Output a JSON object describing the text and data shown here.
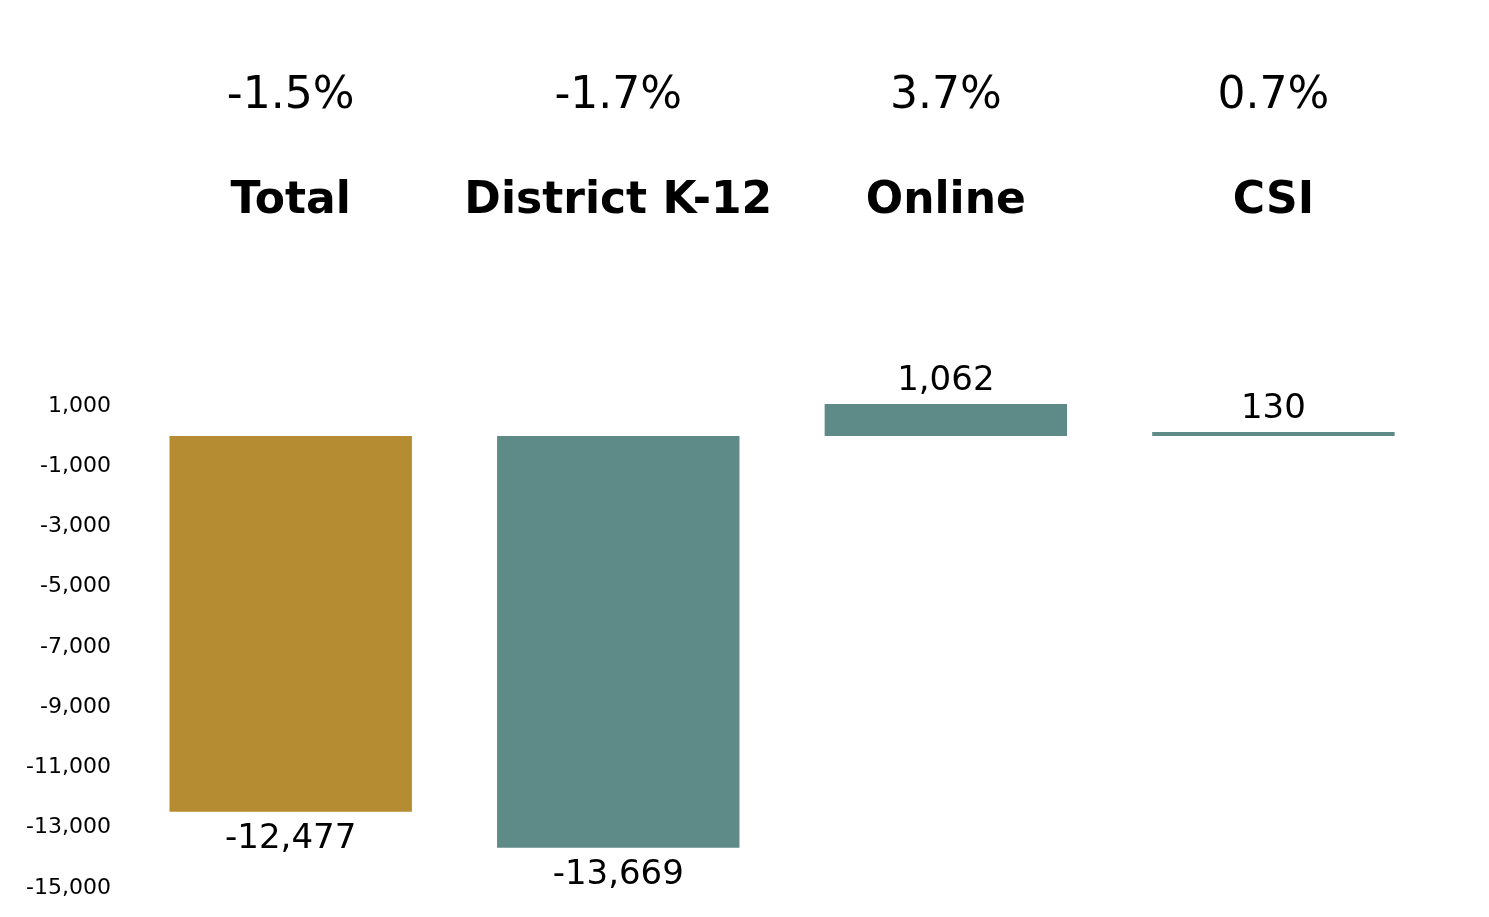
{
  "chart_data": {
    "type": "bar",
    "categories": [
      "Total",
      "District K-12",
      "Online",
      "CSI"
    ],
    "values": [
      -12477,
      -13669,
      1062,
      130
    ],
    "colors": [
      "#b58c32",
      "#5e8a87",
      "#5e8a87",
      "#5e8a87"
    ],
    "value_labels": [
      "-12,477",
      "-13,669",
      "1,062",
      "130"
    ],
    "annotations": [
      "-1.5%",
      "-1.7%",
      "3.7%",
      "0.7%"
    ],
    "ylim": [
      -15000,
      1100
    ],
    "yticks": [
      {
        "value": 1000,
        "label": "1,000"
      },
      {
        "value": -1000,
        "label": "-1,000"
      },
      {
        "value": -3000,
        "label": "-3,000"
      },
      {
        "value": -5000,
        "label": "-5,000"
      },
      {
        "value": -7000,
        "label": "-7,000"
      },
      {
        "value": -9000,
        "label": "-9,000"
      },
      {
        "value": -11000,
        "label": "-11,000"
      },
      {
        "value": -13000,
        "label": "-13,000"
      },
      {
        "value": -15000,
        "label": "-15,000"
      }
    ],
    "grid": false,
    "legend": false
  }
}
